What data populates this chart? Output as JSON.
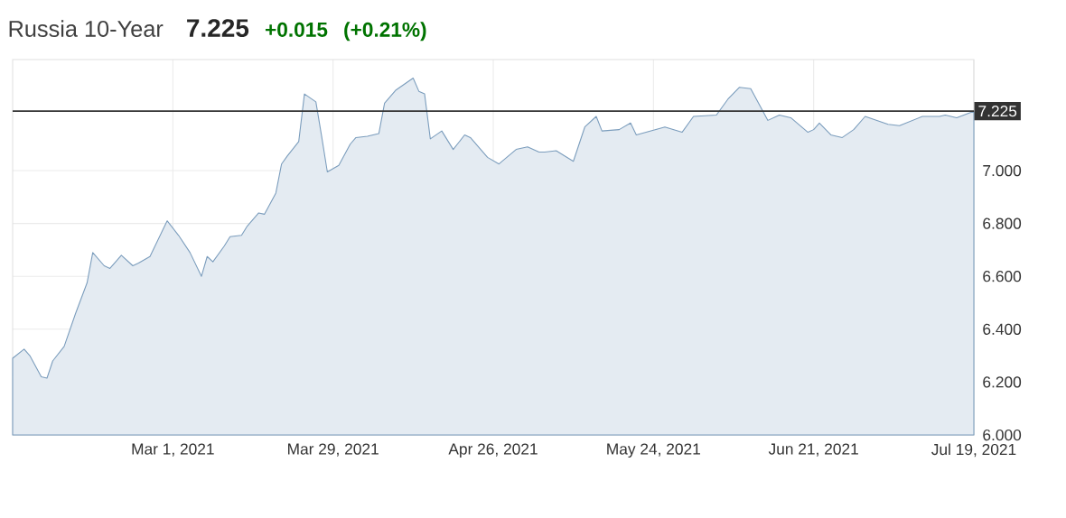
{
  "chart_data": {
    "type": "area",
    "title": "Russia 10-Year",
    "annotations": [
      "7.225",
      "+0.015",
      "(+0.21%)"
    ],
    "x": [
      "2021-02-01",
      "2021-02-03",
      "2021-02-04",
      "2021-02-06",
      "2021-02-07",
      "2021-02-08",
      "2021-02-10",
      "2021-02-12",
      "2021-02-14",
      "2021-02-15",
      "2021-02-17",
      "2021-02-18",
      "2021-02-20",
      "2021-02-22",
      "2021-02-23",
      "2021-02-25",
      "2021-02-28",
      "2021-03-02",
      "2021-03-04",
      "2021-03-06",
      "2021-03-07",
      "2021-03-08",
      "2021-03-10",
      "2021-03-11",
      "2021-03-13",
      "2021-03-14",
      "2021-03-16",
      "2021-03-17",
      "2021-03-19",
      "2021-03-20",
      "2021-03-21",
      "2021-03-23",
      "2021-03-24",
      "2021-03-26",
      "2021-03-27",
      "2021-03-28",
      "2021-03-30",
      "2021-04-01",
      "2021-04-02",
      "2021-04-04",
      "2021-04-06",
      "2021-04-07",
      "2021-04-09",
      "2021-04-12",
      "2021-04-13",
      "2021-04-14",
      "2021-04-15",
      "2021-04-17",
      "2021-04-19",
      "2021-04-21",
      "2021-04-22",
      "2021-04-25",
      "2021-04-27",
      "2021-04-30",
      "2021-05-02",
      "2021-05-04",
      "2021-05-05",
      "2021-05-07",
      "2021-05-10",
      "2021-05-12",
      "2021-05-14",
      "2021-05-15",
      "2021-05-18",
      "2021-05-20",
      "2021-05-21",
      "2021-05-26",
      "2021-05-29",
      "2021-05-31",
      "2021-06-04",
      "2021-06-06",
      "2021-06-08",
      "2021-06-10",
      "2021-06-13",
      "2021-06-15",
      "2021-06-17",
      "2021-06-20",
      "2021-06-21",
      "2021-06-22",
      "2021-06-24",
      "2021-06-26",
      "2021-06-28",
      "2021-06-30",
      "2021-07-04",
      "2021-07-06",
      "2021-07-10",
      "2021-07-13",
      "2021-07-14",
      "2021-07-16",
      "2021-07-19"
    ],
    "series": [
      {
        "color": "#7a9cbc",
        "values": [
          6.29,
          6.325,
          6.3,
          6.22,
          6.215,
          6.28,
          6.335,
          6.46,
          6.575,
          6.69,
          6.64,
          6.63,
          6.68,
          6.64,
          6.65,
          6.675,
          6.81,
          6.755,
          6.69,
          6.6,
          6.675,
          6.655,
          6.715,
          6.75,
          6.755,
          6.79,
          6.84,
          6.835,
          6.915,
          7.025,
          7.055,
          7.11,
          7.29,
          7.26,
          7.13,
          6.995,
          7.02,
          7.1,
          7.125,
          7.13,
          7.14,
          7.255,
          7.305,
          7.35,
          7.3,
          7.29,
          7.12,
          7.15,
          7.08,
          7.135,
          7.125,
          7.05,
          7.025,
          7.08,
          7.09,
          7.07,
          7.07,
          7.075,
          7.035,
          7.165,
          7.205,
          7.15,
          7.155,
          7.18,
          7.135,
          7.165,
          7.145,
          7.205,
          7.21,
          7.27,
          7.315,
          7.31,
          7.19,
          7.21,
          7.2,
          7.145,
          7.155,
          7.18,
          7.135,
          7.125,
          7.155,
          7.205,
          7.175,
          7.17,
          7.205,
          7.205,
          7.21,
          7.2,
          7.225
        ]
      }
    ],
    "xlim": [
      "2021-02-01",
      "2021-07-19"
    ],
    "xticks": [
      {
        "value": "2021-03-01",
        "label": "Mar 1, 2021"
      },
      {
        "value": "2021-03-29",
        "label": "Mar 29, 2021"
      },
      {
        "value": "2021-04-26",
        "label": "Apr 26, 2021"
      },
      {
        "value": "2021-05-24",
        "label": "May 24, 2021"
      },
      {
        "value": "2021-06-21",
        "label": "Jun 21, 2021"
      },
      {
        "value": "2021-07-19",
        "label": "Jul 19, 2021"
      }
    ],
    "ylim": [
      6.0,
      7.42
    ],
    "yticks": [
      {
        "value": 6.0,
        "label": "6.000"
      },
      {
        "value": 6.2,
        "label": "6.200"
      },
      {
        "value": 6.4,
        "label": "6.400"
      },
      {
        "value": 6.6,
        "label": "6.600"
      },
      {
        "value": 6.8,
        "label": "6.800"
      },
      {
        "value": 7.0,
        "label": "7.000"
      }
    ],
    "ref_lines": [
      {
        "axis": "y",
        "value": 7.225,
        "label": "7.225",
        "color": "#333333"
      }
    ],
    "grid": true
  }
}
